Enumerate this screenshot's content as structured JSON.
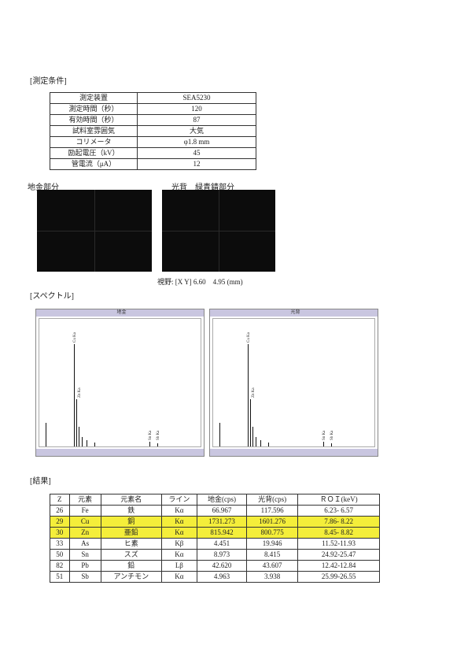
{
  "conditions": {
    "heading": "[測定条件]",
    "rows": [
      [
        "測定装置",
        "SEA5230"
      ],
      [
        "測定時間（秒）",
        "120"
      ],
      [
        "有効時間（秒）",
        "87"
      ],
      [
        "試料室雰囲気",
        "大気"
      ],
      [
        "コリメータ",
        "φ1.8 mm"
      ],
      [
        "励起電圧（kV）",
        "45"
      ],
      [
        "管電流（μA）",
        "12"
      ]
    ]
  },
  "images": {
    "left_label": "地金部分",
    "right_label": "光背　緑青錆部分",
    "field": "視野: [X Y] 6.60　4.95 (mm)"
  },
  "spectra": {
    "heading": "[スペクトル]",
    "windows": [
      {
        "title": "地金",
        "labels": [
          "Cu Ka",
          "Zn Ka",
          "Sn Ka",
          "Sb Ka"
        ]
      },
      {
        "title": "光背",
        "labels": [
          "Cu Ka",
          "Zn Ka",
          "Sn Ka",
          "Sb Ka"
        ]
      }
    ]
  },
  "results": {
    "heading": "[結果]",
    "header": [
      "Z",
      "元素",
      "元素名",
      "ライン",
      "地金(cps)",
      "光背(cps)",
      "ＲＯＩ(keV)"
    ],
    "rows": [
      {
        "cells": [
          "26",
          "Fe",
          "鉄",
          "Kα",
          "66.967",
          "117.596",
          "6.23- 6.57"
        ],
        "highlight": false
      },
      {
        "cells": [
          "29",
          "Cu",
          "銅",
          "Kα",
          "1731.273",
          "1601.276",
          "7.86- 8.22"
        ],
        "highlight": true
      },
      {
        "cells": [
          "30",
          "Zn",
          "亜鉛",
          "Kα",
          "815.942",
          "800.775",
          "8.45- 8.82"
        ],
        "highlight": true
      },
      {
        "cells": [
          "33",
          "As",
          "ヒ素",
          "Kβ",
          "4.451",
          "19.946",
          "11.52-11.93"
        ],
        "highlight": false
      },
      {
        "cells": [
          "50",
          "Sn",
          "スズ",
          "Kα",
          "8.973",
          "8.415",
          "24.92-25.47"
        ],
        "highlight": false
      },
      {
        "cells": [
          "82",
          "Pb",
          "鉛",
          "Lβ",
          "42.620",
          "43.607",
          "12.42-12.84"
        ],
        "highlight": false
      },
      {
        "cells": [
          "51",
          "Sb",
          "アンチモン",
          "Kα",
          "4.963",
          "3.938",
          "25.99-26.55"
        ],
        "highlight": false
      }
    ]
  }
}
